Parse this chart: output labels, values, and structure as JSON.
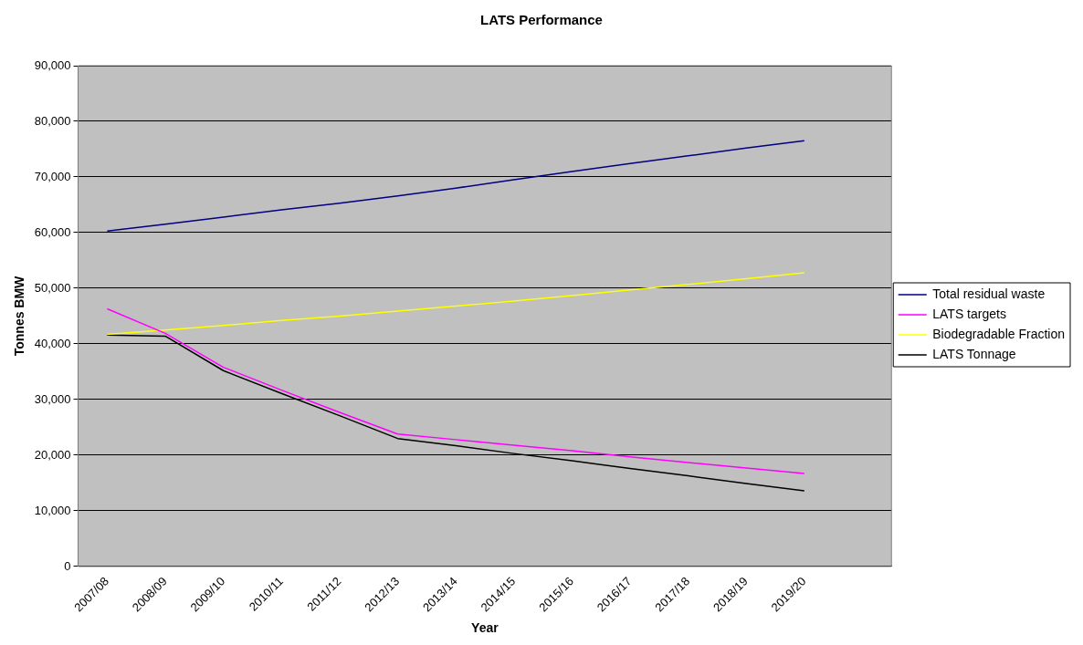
{
  "chart_data": {
    "type": "line",
    "title": "LATS Performance",
    "xlabel": "Year",
    "ylabel": "Tonnes BMW",
    "categories": [
      "2007/08",
      "2008/09",
      "2009/10",
      "2010/11",
      "2011/12",
      "2012/13",
      "2013/14",
      "2014/15",
      "2015/16",
      "2016/17",
      "2017/18",
      "2018/19",
      "2019/20",
      null
    ],
    "series": [
      {
        "name": "Total residual waste",
        "color": "#000080",
        "values": [
          60300,
          61500,
          62800,
          64100,
          65300,
          66600,
          68000,
          69500,
          71000,
          72400,
          73800,
          75200,
          76500,
          null
        ]
      },
      {
        "name": "LATS targets",
        "color": "#ff00ff",
        "values": [
          46300,
          41900,
          35800,
          31700,
          27700,
          23800,
          22800,
          21800,
          20800,
          19700,
          18700,
          17700,
          16700,
          null
        ]
      },
      {
        "name": "Biodegradable Fraction",
        "color": "#ffff00",
        "values": [
          41700,
          42500,
          43300,
          44200,
          45000,
          45900,
          46800,
          47700,
          48700,
          49700,
          50700,
          51700,
          52800,
          null
        ]
      },
      {
        "name": "LATS Tonnage",
        "color": "#000000",
        "values": [
          41600,
          41400,
          35200,
          31100,
          27100,
          23000,
          21700,
          20300,
          19000,
          17600,
          16300,
          14900,
          13600,
          null
        ]
      }
    ],
    "ylim": [
      0,
      90000
    ],
    "yticks": [
      0,
      {
        "value": 10000,
        "label": "10,000"
      },
      {
        "value": 20000,
        "label": "20,000"
      },
      {
        "value": 30000,
        "label": "30,000"
      },
      {
        "value": 40000,
        "label": "40,000"
      },
      {
        "value": 50000,
        "label": "50,000"
      },
      {
        "value": 60000,
        "label": "60,000"
      },
      {
        "value": 70000,
        "label": "70,000"
      },
      {
        "value": 80000,
        "label": "80,000"
      },
      {
        "value": 90000,
        "label": "90,000"
      }
    ],
    "grid": "y",
    "legend": "right",
    "marker": "none",
    "line_style": "solid"
  }
}
